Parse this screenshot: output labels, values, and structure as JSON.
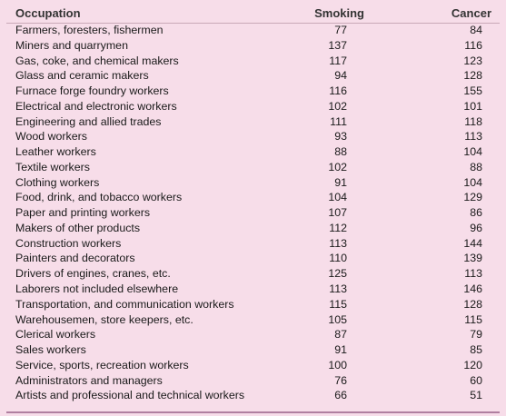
{
  "header": {
    "occupation": "Occupation",
    "smoking": "Smoking",
    "cancer": "Cancer"
  },
  "rows": [
    {
      "occupation": "Farmers, foresters, fishermen",
      "smoking": "77",
      "cancer": "84"
    },
    {
      "occupation": "Miners and quarrymen",
      "smoking": "137",
      "cancer": "116"
    },
    {
      "occupation": "Gas, coke, and chemical makers",
      "smoking": "117",
      "cancer": "123"
    },
    {
      "occupation": "Glass and ceramic makers",
      "smoking": "94",
      "cancer": "128"
    },
    {
      "occupation": "Furnace forge foundry workers",
      "smoking": "116",
      "cancer": "155"
    },
    {
      "occupation": "Electrical and electronic workers",
      "smoking": "102",
      "cancer": "101"
    },
    {
      "occupation": "Engineering and allied trades",
      "smoking": "111",
      "cancer": "118"
    },
    {
      "occupation": "Wood workers",
      "smoking": "93",
      "cancer": "113"
    },
    {
      "occupation": "Leather workers",
      "smoking": "88",
      "cancer": "104"
    },
    {
      "occupation": "Textile workers",
      "smoking": "102",
      "cancer": "88"
    },
    {
      "occupation": "Clothing workers",
      "smoking": "91",
      "cancer": "104"
    },
    {
      "occupation": "Food, drink, and tobacco workers",
      "smoking": "104",
      "cancer": "129"
    },
    {
      "occupation": "Paper and printing workers",
      "smoking": "107",
      "cancer": "86"
    },
    {
      "occupation": "Makers of other products",
      "smoking": "112",
      "cancer": "96"
    },
    {
      "occupation": "Construction workers",
      "smoking": "113",
      "cancer": "144"
    },
    {
      "occupation": "Painters and decorators",
      "smoking": "110",
      "cancer": "139"
    },
    {
      "occupation": "Drivers of engines, cranes, etc.",
      "smoking": "125",
      "cancer": "113"
    },
    {
      "occupation": "Laborers not included elsewhere",
      "smoking": "113",
      "cancer": "146"
    },
    {
      "occupation": "Transportation, and communication workers",
      "smoking": "115",
      "cancer": "128"
    },
    {
      "occupation": "Warehousemen, store keepers, etc.",
      "smoking": "105",
      "cancer": "115"
    },
    {
      "occupation": "Clerical workers",
      "smoking": "87",
      "cancer": "79"
    },
    {
      "occupation": "Sales workers",
      "smoking": "91",
      "cancer": "85"
    },
    {
      "occupation": "Service, sports, recreation workers",
      "smoking": "100",
      "cancer": "120"
    },
    {
      "occupation": "Administrators and managers",
      "smoking": "76",
      "cancer": "60"
    },
    {
      "occupation": "Artists and professional and technical workers",
      "smoking": "66",
      "cancer": "51"
    }
  ]
}
